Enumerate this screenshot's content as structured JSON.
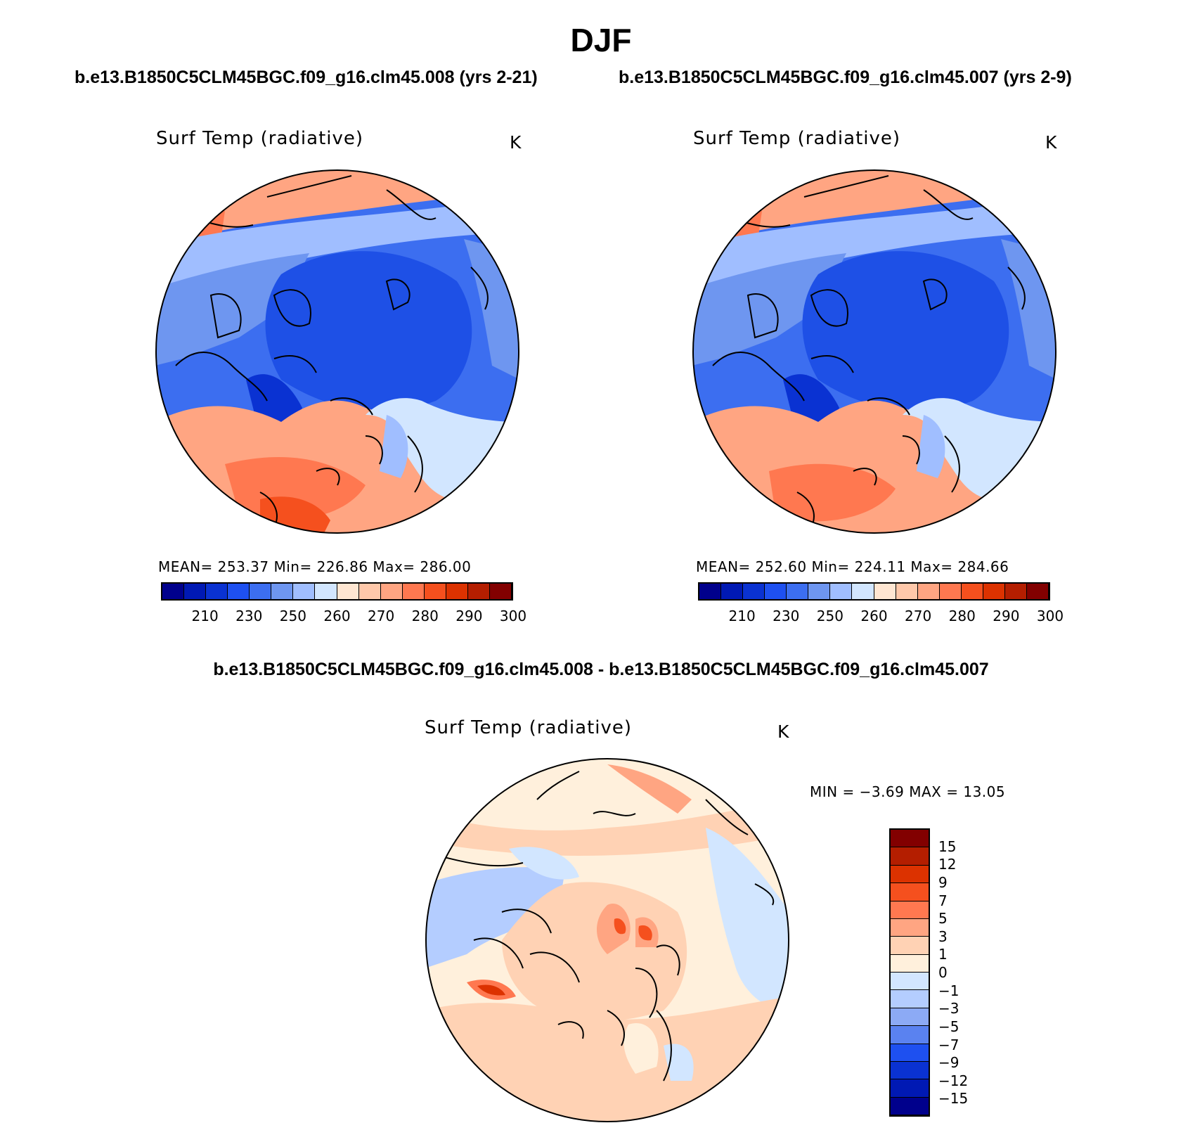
{
  "title": "DJF",
  "panels": [
    {
      "case": "b.e13.B1850C5CLM45BGC.f09_g16.clm45.008 (yrs 2-21)",
      "variable": "Surf Temp (radiative)",
      "units": "K",
      "stats": "MEAN=  253.37    Min=  226.86    Max=  286.00"
    },
    {
      "case": "b.e13.B1850C5CLM45BGC.f09_g16.clm45.007 (yrs 2-9)",
      "variable": "Surf Temp (radiative)",
      "units": "K",
      "stats": "MEAN=  252.60    Min=  224.11    Max=  284.66"
    }
  ],
  "difference": {
    "title": "b.e13.B1850C5CLM45BGC.f09_g16.clm45.008 - b.e13.B1850C5CLM45BGC.f09_g16.clm45.007",
    "variable": "Surf Temp (radiative)",
    "units": "K",
    "stats": "MIN =    −3.69  MAX =    13.05"
  },
  "colorbar_abs": {
    "colors": [
      "#00008c",
      "#0019b4",
      "#0a32d2",
      "#1e50f0",
      "#3c6ef0",
      "#6e96f0",
      "#a0beff",
      "#d2e6ff",
      "#ffe6d2",
      "#ffc8aa",
      "#ffa582",
      "#ff7850",
      "#f5501e",
      "#dc3200",
      "#b41e00",
      "#820000"
    ],
    "tick_labels": [
      "210",
      "230",
      "250",
      "260",
      "270",
      "280",
      "290",
      "300"
    ]
  },
  "colorbar_diff": {
    "colors": [
      "#820000",
      "#b41e00",
      "#dc3200",
      "#f5501e",
      "#ff7850",
      "#ffa582",
      "#ffd2b4",
      "#fff0dc",
      "#d2e6ff",
      "#b4cdff",
      "#8caaf5",
      "#5a82f0",
      "#1e50f0",
      "#0a32d2",
      "#0019b4",
      "#00008c"
    ],
    "tick_labels": [
      "15",
      "12",
      "9",
      "7",
      "5",
      "3",
      "1",
      "0",
      "−1",
      "−3",
      "−5",
      "−7",
      "−9",
      "−12",
      "−15"
    ]
  },
  "map_colors": {
    "deep_blue": "#1e50e6",
    "mid_blue": "#3c6ef0",
    "light_blue": "#6e96f0",
    "pale_blue": "#a0beff",
    "ice_blue": "#d2e6ff",
    "pale_orange": "#ffc8aa",
    "orange": "#ffa582",
    "dark_orange": "#ff7850",
    "red_orange": "#f5501e",
    "cream": "#ffe6d2"
  }
}
